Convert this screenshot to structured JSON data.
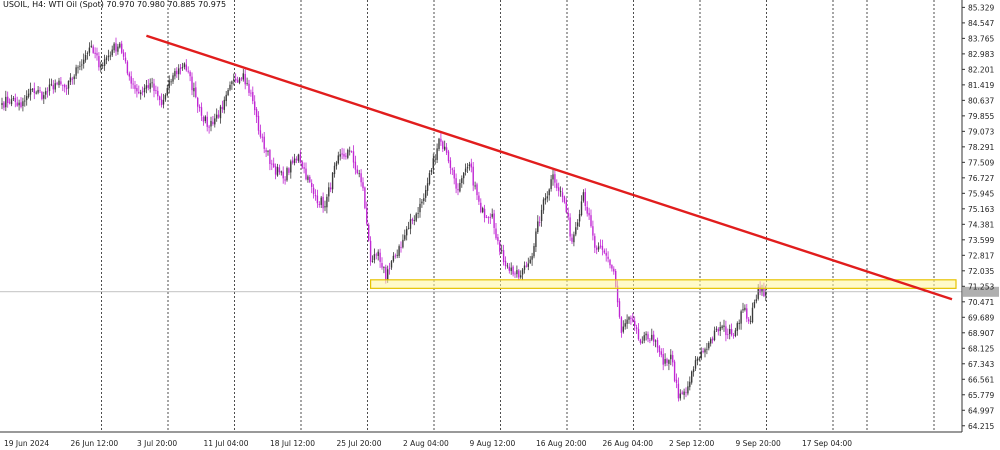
{
  "header": {
    "symbol_info": "USOIL, H4:  WTI Oil (Spot)  70.970 70.980 70.885 70.975"
  },
  "colors": {
    "background": "#ffffff",
    "bull_candle": "#3a3a3a",
    "bear_candle": "#c026d3",
    "trendline": "#e11d1d",
    "support_zone_fill": "#fff59d",
    "support_zone_border": "#e6c300",
    "grid": "#222222",
    "current_price_line": "#9e9e9e",
    "price_tag": "#b0b0b0"
  },
  "chart_data": {
    "type": "candlestick",
    "symbol": "USOIL",
    "timeframe": "H4",
    "instrument": "WTI Oil (Spot)",
    "last_ohlc": {
      "open": 70.97,
      "high": 70.98,
      "low": 70.885,
      "close": 70.975
    },
    "ylim": [
      63.9,
      85.5
    ],
    "y_ticks": [
      "85.329",
      "84.547",
      "83.765",
      "82.983",
      "82.201",
      "81.419",
      "80.637",
      "79.855",
      "79.073",
      "78.291",
      "77.509",
      "76.727",
      "75.945",
      "75.163",
      "74.381",
      "73.599",
      "72.817",
      "72.035",
      "71.253",
      "70.471",
      "69.689",
      "68.907",
      "68.125",
      "67.343",
      "66.561",
      "65.779",
      "64.997",
      "64.215"
    ],
    "x_tick_labels": [
      "19 Jun 2024",
      "26 Jun 12:00",
      "3 Jul 20:00",
      "11 Jul 04:00",
      "18 Jul 12:00",
      "25 Jul 20:00",
      "2 Aug 04:00",
      "9 Aug 12:00",
      "16 Aug 20:00",
      "26 Aug 04:00",
      "2 Sep 12:00",
      "9 Sep 20:00",
      "17 Sep 04:00"
    ],
    "grid": "vertical-dotted",
    "current_price": 70.975,
    "key_points": [
      [
        0,
        80.5
      ],
      [
        5,
        80.7
      ],
      [
        10,
        80.3
      ],
      [
        16,
        81.2
      ],
      [
        22,
        80.9
      ],
      [
        28,
        81.5
      ],
      [
        34,
        81.2
      ],
      [
        40,
        82.3
      ],
      [
        46,
        83.3
      ],
      [
        52,
        82.4
      ],
      [
        58,
        83.2
      ],
      [
        62,
        83.5
      ],
      [
        66,
        82.0
      ],
      [
        72,
        81.0
      ],
      [
        78,
        81.5
      ],
      [
        84,
        80.4
      ],
      [
        90,
        81.9
      ],
      [
        96,
        82.5
      ],
      [
        102,
        80.8
      ],
      [
        108,
        79.3
      ],
      [
        116,
        80.2
      ],
      [
        122,
        81.7
      ],
      [
        127,
        82.0
      ],
      [
        132,
        80.6
      ],
      [
        136,
        78.8
      ],
      [
        142,
        77.4
      ],
      [
        148,
        76.7
      ],
      [
        156,
        77.9
      ],
      [
        164,
        75.9
      ],
      [
        170,
        75.3
      ],
      [
        176,
        77.5
      ],
      [
        183,
        78.1
      ],
      [
        190,
        76.2
      ],
      [
        194,
        72.5
      ],
      [
        198,
        73.0
      ],
      [
        202,
        71.6
      ],
      [
        207,
        72.8
      ],
      [
        214,
        74.2
      ],
      [
        222,
        75.7
      ],
      [
        230,
        78.7
      ],
      [
        234,
        78.0
      ],
      [
        240,
        76.1
      ],
      [
        246,
        77.4
      ],
      [
        252,
        75.0
      ],
      [
        258,
        74.9
      ],
      [
        262,
        73.0
      ],
      [
        266,
        72.3
      ],
      [
        272,
        71.7
      ],
      [
        278,
        72.6
      ],
      [
        284,
        75.1
      ],
      [
        290,
        76.9
      ],
      [
        296,
        75.5
      ],
      [
        300,
        73.5
      ],
      [
        306,
        76.0
      ],
      [
        312,
        73.2
      ],
      [
        318,
        72.8
      ],
      [
        322,
        72.0
      ],
      [
        326,
        68.9
      ],
      [
        330,
        69.7
      ],
      [
        336,
        68.4
      ],
      [
        342,
        68.8
      ],
      [
        348,
        67.3
      ],
      [
        352,
        67.8
      ],
      [
        356,
        65.6
      ],
      [
        360,
        65.9
      ],
      [
        366,
        67.6
      ],
      [
        372,
        68.4
      ],
      [
        378,
        69.2
      ],
      [
        384,
        68.8
      ],
      [
        390,
        70.1
      ],
      [
        394,
        69.5
      ],
      [
        398,
        71.2
      ],
      [
        402,
        70.97
      ]
    ]
  },
  "annotations": {
    "trendline": {
      "start_bar": 76,
      "start_price": 83.9,
      "end_bar": 500,
      "end_price": 70.6
    },
    "support_zone": {
      "low": 71.15,
      "high": 71.58,
      "start_bar": 194,
      "end_bar": 500
    }
  }
}
